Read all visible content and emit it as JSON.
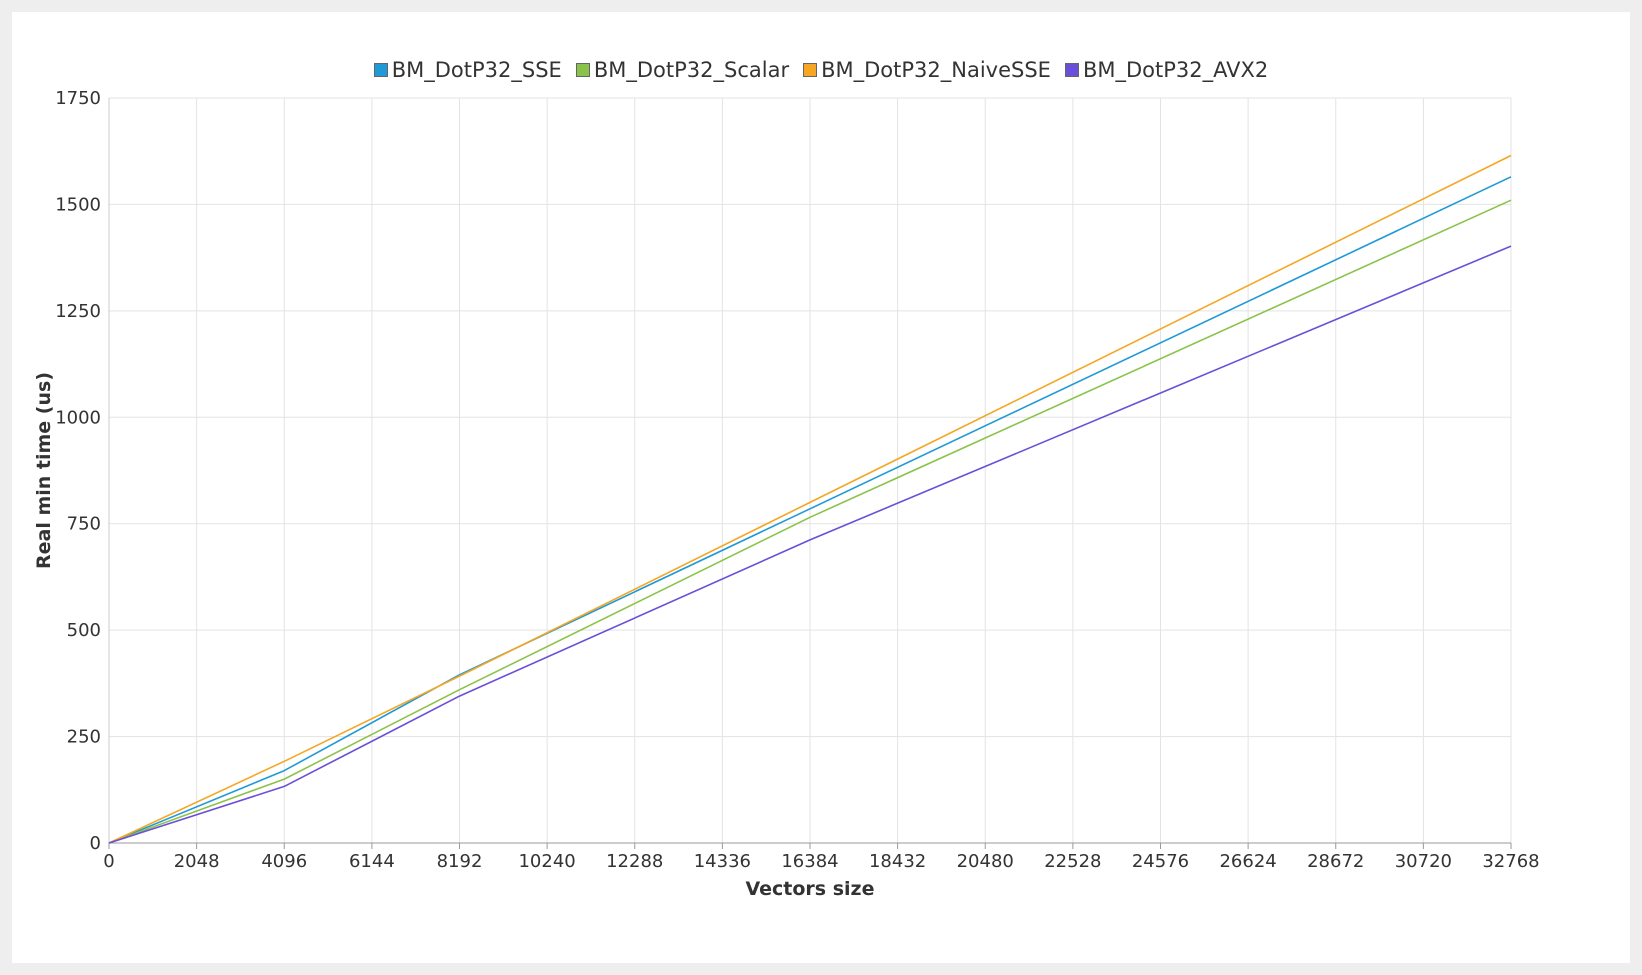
{
  "chart_data": {
    "type": "line",
    "xlabel": "Vectors size",
    "ylabel": "Real min time (us)",
    "xlim": [
      0,
      32768
    ],
    "ylim": [
      0,
      1750
    ],
    "x_ticks": [
      "0",
      "2048",
      "4096",
      "6144",
      "8192",
      "10240",
      "12288",
      "14336",
      "16384",
      "18432",
      "20480",
      "22528",
      "24576",
      "26624",
      "28672",
      "30720",
      "32768"
    ],
    "y_ticks": [
      "0",
      "250",
      "500",
      "750",
      "1000",
      "1250",
      "1500",
      "1750"
    ],
    "grid": true,
    "legend_position": "top-center",
    "x": [
      0,
      4096,
      8192,
      16384,
      32768
    ],
    "series": [
      {
        "name": "BM_DotP32_SSE",
        "color": "#1f9ad6",
        "values": [
          0,
          170,
          395,
          785,
          1565
        ]
      },
      {
        "name": "BM_DotP32_Scalar",
        "color": "#8bc34a",
        "values": [
          0,
          150,
          360,
          765,
          1510
        ]
      },
      {
        "name": "BM_DotP32_NaiveSSE",
        "color": "#f5a623",
        "values": [
          0,
          192,
          392,
          800,
          1615
        ]
      },
      {
        "name": "BM_DotP32_AVX2",
        "color": "#6a4fd8",
        "values": [
          0,
          133,
          345,
          712,
          1402
        ]
      }
    ]
  }
}
